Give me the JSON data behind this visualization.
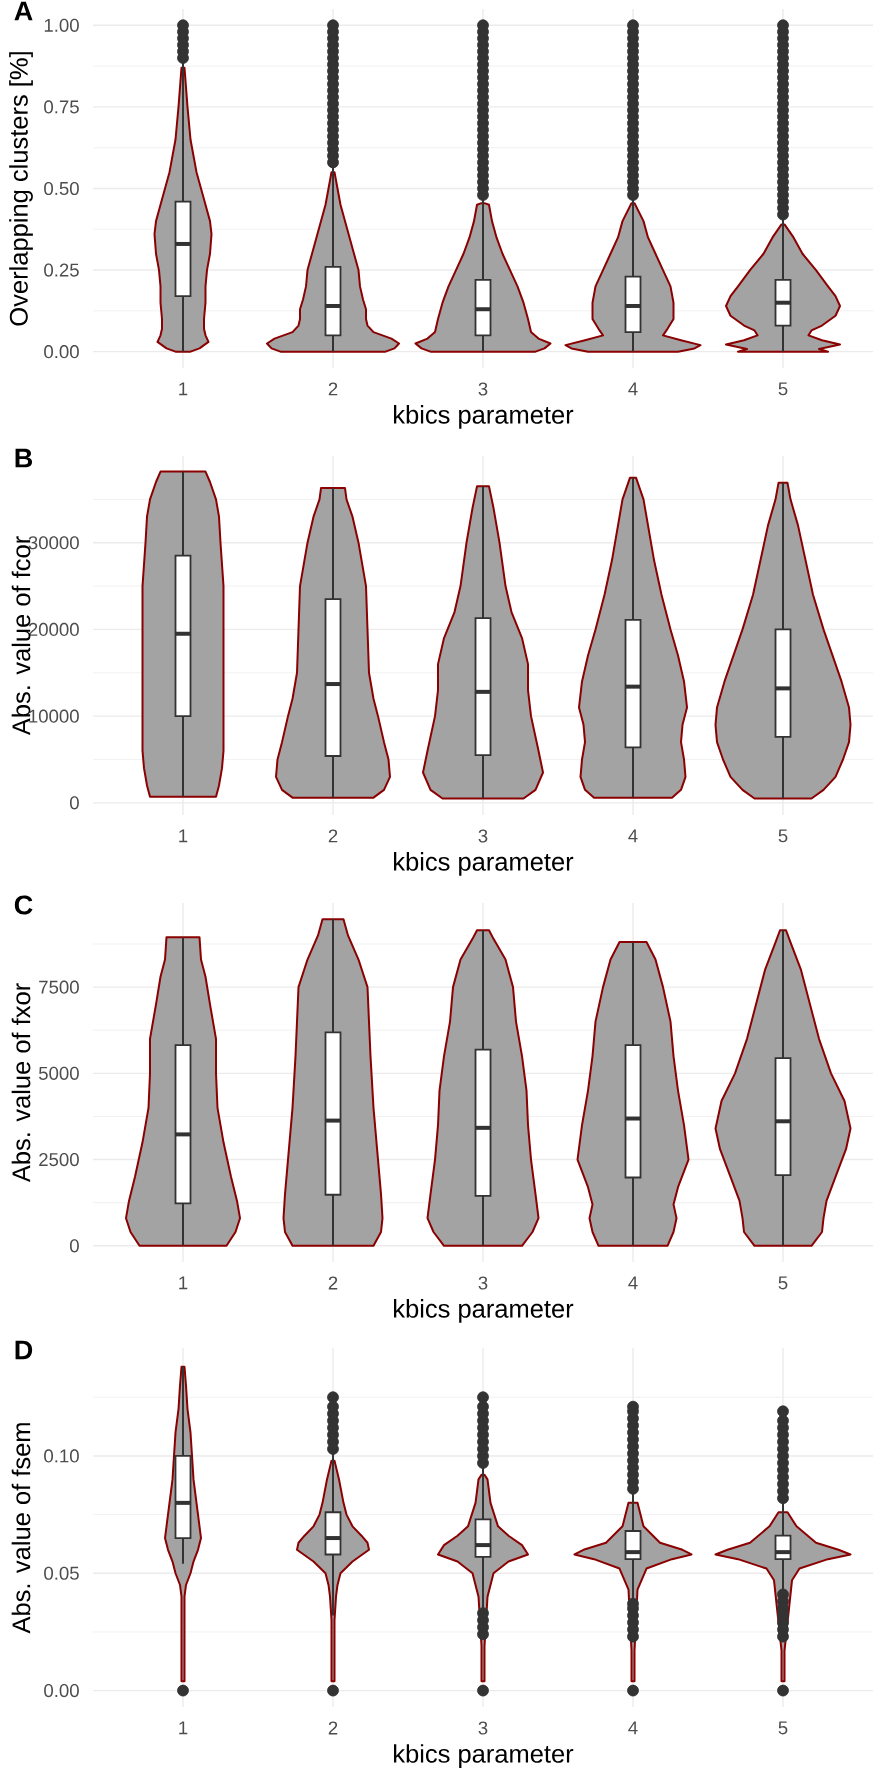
{
  "chart_data": [
    {
      "type": "box",
      "title": "A",
      "xlabel": "kbics parameter",
      "ylabel": "Overlapping clusters [%]",
      "xlim": [
        0.4,
        5.6
      ],
      "xticks": [
        1,
        2,
        3,
        4,
        5
      ],
      "ylim": [
        -0.05,
        1.05
      ],
      "yticks": [
        {
          "value": 0,
          "label": "0.00"
        },
        {
          "value": 0.125,
          "label": null
        },
        {
          "value": 0.25,
          "label": "0.25"
        },
        {
          "value": 0.375,
          "label": null
        },
        {
          "value": 0.5,
          "label": "0.50"
        },
        {
          "value": 0.625,
          "label": null
        },
        {
          "value": 0.75,
          "label": "0.75"
        },
        {
          "value": 0.875,
          "label": null
        },
        {
          "value": 1,
          "label": "1.00"
        }
      ],
      "grid": true,
      "series": [
        {
          "type": "area",
          "color": "#a3a3a3",
          "x": [
            1.05,
            1.11,
            1.17,
            1.15,
            1.14,
            1.14,
            1.15,
            1.15,
            1.16,
            1.18,
            1.19,
            1.18,
            1.15,
            1.12,
            1.09,
            1.05,
            1.03,
            1.01,
            0.99,
            0.97,
            0.95,
            0.91,
            0.88,
            0.85,
            0.82,
            0.81,
            0.82,
            0.84,
            0.85,
            0.85,
            0.86,
            0.86,
            0.85,
            0.83,
            0.89,
            0.95
          ],
          "values": [
            0,
            0.01,
            0.03,
            0.05,
            0.07,
            0.1,
            0.15,
            0.2,
            0.25,
            0.3,
            0.36,
            0.4,
            0.45,
            0.5,
            0.55,
            0.65,
            0.75,
            0.87,
            0.87,
            0.75,
            0.65,
            0.55,
            0.5,
            0.45,
            0.4,
            0.36,
            0.3,
            0.25,
            0.2,
            0.15,
            0.1,
            0.07,
            0.05,
            0.03,
            0.01,
            0
          ]
        },
        {
          "type": "area",
          "color": "#a3a3a3",
          "x": [
            2.35,
            2.41,
            2.44,
            2.39,
            2.27,
            2.23,
            2.22,
            2.22,
            2.2,
            2.18,
            2.17,
            2.14,
            2.11,
            2.08,
            2.05,
            2.03,
            2.01,
            1.99,
            1.97,
            1.95,
            1.92,
            1.89,
            1.86,
            1.83,
            1.82,
            1.8,
            1.78,
            1.78,
            1.77,
            1.73,
            1.61,
            1.56,
            1.59,
            1.65
          ],
          "values": [
            0,
            0.01,
            0.025,
            0.04,
            0.06,
            0.08,
            0.1,
            0.13,
            0.16,
            0.2,
            0.25,
            0.3,
            0.35,
            0.4,
            0.45,
            0.5,
            0.55,
            0.55,
            0.5,
            0.45,
            0.4,
            0.35,
            0.3,
            0.25,
            0.2,
            0.16,
            0.13,
            0.1,
            0.08,
            0.06,
            0.04,
            0.025,
            0.01,
            0
          ]
        },
        {
          "type": "area",
          "color": "#a3a3a3",
          "x": [
            3.35,
            3.41,
            3.45,
            3.37,
            3.32,
            3.3,
            3.27,
            3.23,
            3.18,
            3.13,
            3.09,
            3.06,
            3.04,
            3.01,
            2.99,
            2.96,
            2.94,
            2.91,
            2.87,
            2.82,
            2.77,
            2.73,
            2.7,
            2.68,
            2.63,
            2.55,
            2.59,
            2.65
          ],
          "values": [
            0,
            0.01,
            0.025,
            0.04,
            0.06,
            0.1,
            0.15,
            0.2,
            0.25,
            0.3,
            0.35,
            0.4,
            0.45,
            0.455,
            0.455,
            0.45,
            0.4,
            0.35,
            0.3,
            0.25,
            0.2,
            0.15,
            0.1,
            0.06,
            0.04,
            0.025,
            0.01,
            0
          ]
        },
        {
          "type": "area",
          "color": "#a3a3a3",
          "x": [
            4.3,
            4.41,
            4.45,
            4.32,
            4.2,
            4.23,
            4.27,
            4.27,
            4.25,
            4.2,
            4.15,
            4.1,
            4.07,
            4.01,
            3.99,
            3.93,
            3.9,
            3.85,
            3.8,
            3.75,
            3.73,
            3.73,
            3.77,
            3.8,
            3.68,
            3.55,
            3.59,
            3.7
          ],
          "values": [
            0,
            0.01,
            0.02,
            0.035,
            0.05,
            0.07,
            0.1,
            0.15,
            0.2,
            0.25,
            0.3,
            0.35,
            0.4,
            0.455,
            0.455,
            0.4,
            0.35,
            0.3,
            0.25,
            0.2,
            0.15,
            0.1,
            0.07,
            0.05,
            0.035,
            0.02,
            0.01,
            0
          ]
        },
        {
          "type": "area",
          "color": "#a3a3a3",
          "x": [
            5.3,
            5.24,
            5.38,
            5.26,
            5.17,
            5.19,
            5.26,
            5.35,
            5.38,
            5.35,
            5.3,
            5.22,
            5.13,
            5.07,
            5.01,
            4.99,
            4.93,
            4.87,
            4.78,
            4.7,
            4.65,
            4.62,
            4.65,
            4.74,
            4.81,
            4.83,
            4.74,
            4.62,
            4.76,
            4.7
          ],
          "values": [
            0,
            0.008,
            0.022,
            0.035,
            0.05,
            0.065,
            0.08,
            0.11,
            0.14,
            0.17,
            0.2,
            0.25,
            0.3,
            0.35,
            0.39,
            0.39,
            0.35,
            0.3,
            0.25,
            0.2,
            0.17,
            0.14,
            0.11,
            0.08,
            0.065,
            0.05,
            0.035,
            0.022,
            0.008,
            0
          ]
        },
        {
          "type": "box",
          "marker": "circle",
          "color": "#333333",
          "x": [
            1,
            2,
            3,
            4,
            5
          ],
          "boxes": [
            {
              "low": 0,
              "q1": 0.17,
              "median": 0.33,
              "q3": 0.46,
              "high": 0.89,
              "outliers": [
                0.9,
                0.92,
                0.94,
                0.96,
                0.98,
                1
              ]
            },
            {
              "low": 0,
              "q1": 0.05,
              "median": 0.14,
              "q3": 0.26,
              "high": 0.57,
              "outliers": [
                0.58,
                0.6,
                0.62,
                0.64,
                0.66,
                0.68,
                0.7,
                0.72,
                0.74,
                0.76,
                0.78,
                0.8,
                0.82,
                0.84,
                0.86,
                0.88,
                0.9,
                0.92,
                0.94,
                0.96,
                0.98,
                1
              ]
            },
            {
              "low": 0,
              "q1": 0.05,
              "median": 0.13,
              "q3": 0.22,
              "high": 0.47,
              "outliers": [
                0.48,
                0.5,
                0.52,
                0.54,
                0.56,
                0.58,
                0.6,
                0.62,
                0.64,
                0.66,
                0.68,
                0.7,
                0.72,
                0.74,
                0.76,
                0.78,
                0.8,
                0.82,
                0.84,
                0.86,
                0.88,
                0.9,
                0.92,
                0.94,
                0.96,
                0.98,
                1
              ]
            },
            {
              "low": 0,
              "q1": 0.06,
              "median": 0.14,
              "q3": 0.23,
              "high": 0.47,
              "outliers": [
                0.48,
                0.5,
                0.52,
                0.54,
                0.56,
                0.58,
                0.6,
                0.62,
                0.64,
                0.66,
                0.68,
                0.7,
                0.72,
                0.74,
                0.76,
                0.78,
                0.8,
                0.82,
                0.84,
                0.86,
                0.88,
                0.9,
                0.92,
                0.94,
                0.96,
                0.98,
                1
              ]
            },
            {
              "low": 0,
              "q1": 0.08,
              "median": 0.15,
              "q3": 0.22,
              "high": 0.41,
              "outliers": [
                0.42,
                0.44,
                0.46,
                0.48,
                0.5,
                0.52,
                0.54,
                0.56,
                0.58,
                0.6,
                0.62,
                0.64,
                0.66,
                0.68,
                0.7,
                0.72,
                0.74,
                0.76,
                0.78,
                0.8,
                0.82,
                0.84,
                0.86,
                0.88,
                0.9,
                0.92,
                0.94,
                0.96,
                0.98,
                1
              ]
            }
          ]
        }
      ]
    },
    {
      "type": "box",
      "title": "B",
      "xlabel": "kbics parameter",
      "ylabel": "Abs. value of fcor",
      "xlim": [
        0.4,
        5.6
      ],
      "xticks": [
        1,
        2,
        3,
        4,
        5
      ],
      "ylim": [
        -1400,
        40000
      ],
      "yticks": [
        0,
        {
          "value": 5000,
          "label": null
        },
        10000,
        {
          "value": 15000,
          "label": null
        },
        20000,
        {
          "value": 25000,
          "label": null
        },
        30000,
        {
          "value": 35000,
          "label": null
        }
      ],
      "grid": true,
      "series": [
        {
          "type": "area",
          "color": "#a3a3a3",
          "x": [
            1.22,
            1.24,
            1.26,
            1.27,
            1.27,
            1.27,
            1.27,
            1.27,
            1.25,
            1.24,
            1.22,
            1.18,
            1.15,
            0.85,
            0.82,
            0.78,
            0.76,
            0.75,
            0.73,
            0.73,
            0.73,
            0.73,
            0.73,
            0.74,
            0.76,
            0.78
          ],
          "values": [
            700,
            2000,
            4000,
            6000,
            10000,
            15000,
            20000,
            25000,
            30000,
            33000,
            35000,
            37000,
            38200,
            38200,
            37000,
            35000,
            33000,
            30000,
            25000,
            20000,
            15000,
            10000,
            6000,
            4000,
            2000,
            700
          ]
        },
        {
          "type": "area",
          "color": "#a3a3a3",
          "x": [
            2.27,
            2.34,
            2.38,
            2.37,
            2.34,
            2.3,
            2.27,
            2.24,
            2.23,
            2.22,
            2.19,
            2.17,
            2.13,
            2.09,
            2.08,
            1.92,
            1.91,
            1.87,
            1.83,
            1.81,
            1.78,
            1.77,
            1.76,
            1.73,
            1.7,
            1.66,
            1.63,
            1.62,
            1.66,
            1.73
          ],
          "values": [
            600,
            1500,
            3000,
            5000,
            7000,
            10000,
            12000,
            15000,
            20000,
            25000,
            28000,
            30000,
            33000,
            35000,
            36300,
            36300,
            35000,
            33000,
            30000,
            28000,
            25000,
            20000,
            15000,
            12000,
            10000,
            7000,
            5000,
            3000,
            1500,
            600
          ]
        },
        {
          "type": "area",
          "color": "#a3a3a3",
          "x": [
            3.27,
            3.35,
            3.4,
            3.37,
            3.32,
            3.3,
            3.3,
            3.26,
            3.19,
            3.15,
            3.11,
            3.07,
            3.04,
            2.96,
            2.93,
            2.89,
            2.85,
            2.81,
            2.74,
            2.7,
            2.7,
            2.68,
            2.63,
            2.6,
            2.65,
            2.73
          ],
          "values": [
            500,
            1500,
            3500,
            6000,
            10000,
            13000,
            16000,
            19000,
            22000,
            25000,
            30000,
            34000,
            36500,
            36500,
            34000,
            30000,
            25000,
            22000,
            19000,
            16000,
            13000,
            10000,
            6000,
            3500,
            1500,
            500
          ]
        },
        {
          "type": "area",
          "color": "#a3a3a3",
          "x": [
            4.26,
            4.32,
            4.35,
            4.34,
            4.32,
            4.33,
            4.36,
            4.34,
            4.3,
            4.25,
            4.19,
            4.14,
            4.1,
            4.07,
            4.02,
            3.98,
            3.93,
            3.9,
            3.86,
            3.81,
            3.75,
            3.7,
            3.66,
            3.64,
            3.67,
            3.68,
            3.66,
            3.65,
            3.68,
            3.74
          ],
          "values": [
            600,
            1500,
            3000,
            5000,
            7000,
            9000,
            11000,
            14000,
            17000,
            20000,
            24000,
            28000,
            32000,
            35000,
            37500,
            37500,
            35000,
            32000,
            28000,
            24000,
            20000,
            17000,
            14000,
            11000,
            9000,
            7000,
            5000,
            3000,
            1500,
            600
          ]
        },
        {
          "type": "area",
          "color": "#a3a3a3",
          "x": [
            5.19,
            5.27,
            5.35,
            5.4,
            5.44,
            5.45,
            5.44,
            5.39,
            5.33,
            5.27,
            5.2,
            5.15,
            5.1,
            5.05,
            5.03,
            4.97,
            4.95,
            4.9,
            4.85,
            4.8,
            4.73,
            4.67,
            4.61,
            4.56,
            4.55,
            4.56,
            4.6,
            4.65,
            4.73,
            4.81
          ],
          "values": [
            500,
            1500,
            3000,
            5000,
            7000,
            9000,
            11000,
            14000,
            17000,
            20000,
            24000,
            28000,
            32000,
            35000,
            36900,
            36900,
            35000,
            32000,
            28000,
            24000,
            20000,
            17000,
            14000,
            11000,
            9000,
            7000,
            5000,
            3000,
            1500,
            500
          ]
        },
        {
          "type": "box",
          "marker": "circle",
          "color": "#333333",
          "x": [
            1,
            2,
            3,
            4,
            5
          ],
          "boxes": [
            {
              "low": 700,
              "q1": 10000,
              "median": 19500,
              "q3": 28500,
              "high": 38200
            },
            {
              "low": 600,
              "q1": 5400,
              "median": 13700,
              "q3": 23500,
              "high": 36300
            },
            {
              "low": 500,
              "q1": 5500,
              "median": 12800,
              "q3": 21300,
              "high": 36500
            },
            {
              "low": 600,
              "q1": 6400,
              "median": 13400,
              "q3": 21100,
              "high": 37500
            },
            {
              "low": 500,
              "q1": 7600,
              "median": 13200,
              "q3": 20000,
              "high": 36900
            }
          ]
        }
      ]
    },
    {
      "type": "box",
      "title": "C",
      "xlabel": "kbics parameter",
      "ylabel": "Abs. value of fxor",
      "xlim": [
        0.4,
        5.6
      ],
      "xticks": [
        1,
        2,
        3,
        4,
        5
      ],
      "ylim": [
        -470,
        9940
      ],
      "yticks": [
        0,
        {
          "value": 1250,
          "label": null
        },
        2500,
        {
          "value": 3750,
          "label": null
        },
        5000,
        {
          "value": 6250,
          "label": null
        },
        7500,
        {
          "value": 8750,
          "label": null
        }
      ],
      "grid": true,
      "series": [
        {
          "type": "area",
          "color": "#a3a3a3",
          "x": [
            1.29,
            1.35,
            1.38,
            1.36,
            1.32,
            1.27,
            1.23,
            1.22,
            1.22,
            1.18,
            1.15,
            1.12,
            1.11,
            0.89,
            0.88,
            0.85,
            0.82,
            0.78,
            0.78,
            0.77,
            0.73,
            0.68,
            0.64,
            0.62,
            0.65,
            0.71
          ],
          "values": [
            0,
            400,
            800,
            1300,
            2000,
            3000,
            4000,
            5000,
            6000,
            7000,
            7800,
            8300,
            8950,
            8950,
            8300,
            7800,
            7000,
            6000,
            5000,
            4000,
            3000,
            2000,
            1300,
            800,
            400,
            0
          ]
        },
        {
          "type": "area",
          "color": "#a3a3a3",
          "x": [
            2.27,
            2.32,
            2.33,
            2.32,
            2.3,
            2.27,
            2.25,
            2.24,
            2.23,
            2.17,
            2.1,
            2.07,
            1.93,
            1.9,
            1.83,
            1.77,
            1.76,
            1.75,
            1.73,
            1.7,
            1.68,
            1.67,
            1.68,
            1.73
          ],
          "values": [
            0,
            400,
            800,
            1500,
            2500,
            4000,
            5500,
            6500,
            7500,
            8300,
            9000,
            9470,
            9470,
            9000,
            8300,
            7500,
            6500,
            5500,
            4000,
            2500,
            1500,
            800,
            400,
            0
          ]
        },
        {
          "type": "area",
          "color": "#a3a3a3",
          "x": [
            3.26,
            3.33,
            3.37,
            3.35,
            3.32,
            3.3,
            3.29,
            3.26,
            3.22,
            3.2,
            3.15,
            3.07,
            3.04,
            2.96,
            2.93,
            2.85,
            2.8,
            2.78,
            2.74,
            2.71,
            2.7,
            2.68,
            2.65,
            2.63,
            2.67,
            2.74
          ],
          "values": [
            0,
            400,
            800,
            1500,
            2500,
            3500,
            4500,
            5500,
            6500,
            7500,
            8300,
            8900,
            9150,
            9150,
            8900,
            8300,
            7500,
            6500,
            5500,
            4500,
            3500,
            2500,
            1500,
            800,
            400,
            0
          ]
        },
        {
          "type": "area",
          "color": "#a3a3a3",
          "x": [
            4.23,
            4.27,
            4.29,
            4.27,
            4.3,
            4.37,
            4.34,
            4.3,
            4.27,
            4.25,
            4.2,
            4.15,
            4.09,
            3.91,
            3.85,
            3.8,
            3.75,
            3.73,
            3.7,
            3.66,
            3.63,
            3.7,
            3.73,
            3.71,
            3.73,
            3.77
          ],
          "values": [
            0,
            400,
            800,
            1200,
            1700,
            2500,
            3500,
            4500,
            5500,
            6500,
            7500,
            8300,
            8810,
            8810,
            8300,
            7500,
            6500,
            5500,
            4500,
            3500,
            2500,
            1700,
            1200,
            800,
            400,
            0
          ]
        },
        {
          "type": "area",
          "color": "#a3a3a3",
          "x": [
            5.19,
            5.26,
            5.27,
            5.29,
            5.35,
            5.42,
            5.45,
            5.41,
            5.32,
            5.24,
            5.18,
            5.12,
            5.05,
            5.02,
            4.98,
            4.95,
            4.88,
            4.82,
            4.76,
            4.68,
            4.59,
            4.55,
            4.58,
            4.65,
            4.71,
            4.73,
            4.74,
            4.81
          ],
          "values": [
            0,
            400,
            800,
            1300,
            2000,
            2800,
            3400,
            4200,
            5000,
            6000,
            7000,
            8000,
            8800,
            9150,
            9150,
            8800,
            8000,
            7000,
            6000,
            5000,
            4200,
            3400,
            2800,
            2000,
            1300,
            800,
            400,
            0
          ]
        },
        {
          "type": "box",
          "marker": "circle",
          "color": "#333333",
          "x": [
            1,
            2,
            3,
            4,
            5
          ],
          "boxes": [
            {
              "low": 0,
              "q1": 1230,
              "median": 3230,
              "q3": 5820,
              "high": 8950
            },
            {
              "low": 0,
              "q1": 1480,
              "median": 3630,
              "q3": 6190,
              "high": 9470
            },
            {
              "low": 0,
              "q1": 1450,
              "median": 3420,
              "q3": 5690,
              "high": 9150
            },
            {
              "low": 0,
              "q1": 1980,
              "median": 3690,
              "q3": 5820,
              "high": 8810
            },
            {
              "low": 0,
              "q1": 2050,
              "median": 3610,
              "q3": 5440,
              "high": 9150
            }
          ]
        }
      ]
    },
    {
      "type": "box",
      "title": "D",
      "xlabel": "kbics parameter",
      "ylabel": "Abs. value of fsem",
      "xlim": [
        0.4,
        5.6
      ],
      "xticks": [
        1,
        2,
        3,
        4,
        5
      ],
      "ylim": [
        -0.007,
        0.146
      ],
      "yticks": [
        {
          "value": 0,
          "label": "0.00"
        },
        {
          "value": 0.025,
          "label": null
        },
        {
          "value": 0.05,
          "label": "0.05"
        },
        {
          "value": 0.075,
          "label": null
        },
        {
          "value": 0.1,
          "label": "0.10"
        },
        {
          "value": 0.125,
          "label": null
        }
      ],
      "grid": true,
      "series": [
        {
          "type": "area",
          "color": "#a3a3a3",
          "x": [
            1.01,
            1.01,
            1.02,
            1.05,
            1.07,
            1.1,
            1.12,
            1.11,
            1.09,
            1.07,
            1.06,
            1.05,
            1.03,
            1.02,
            1.01,
            0.99,
            0.98,
            0.97,
            0.95,
            0.94,
            0.93,
            0.91,
            0.89,
            0.88,
            0.9,
            0.93,
            0.95,
            0.98,
            0.99,
            0.99
          ],
          "values": [
            0.004,
            0.04,
            0.045,
            0.05,
            0.055,
            0.06,
            0.065,
            0.07,
            0.08,
            0.09,
            0.1,
            0.11,
            0.12,
            0.13,
            0.138,
            0.138,
            0.13,
            0.12,
            0.11,
            0.1,
            0.09,
            0.08,
            0.07,
            0.065,
            0.06,
            0.055,
            0.05,
            0.045,
            0.04,
            0.004
          ]
        },
        {
          "type": "area",
          "color": "#a3a3a3",
          "x": [
            2.01,
            2.01,
            2.02,
            2.03,
            2.05,
            2.13,
            2.24,
            2.23,
            2.19,
            2.13,
            2.09,
            2.07,
            2.04,
            2.01,
            1.99,
            1.96,
            1.93,
            1.91,
            1.87,
            1.81,
            1.77,
            1.76,
            1.87,
            1.95,
            1.97,
            1.98,
            1.99,
            1.99
          ],
          "values": [
            0.004,
            0.03,
            0.04,
            0.045,
            0.05,
            0.055,
            0.06,
            0.063,
            0.066,
            0.07,
            0.075,
            0.08,
            0.09,
            0.098,
            0.098,
            0.09,
            0.08,
            0.075,
            0.07,
            0.066,
            0.063,
            0.06,
            0.055,
            0.05,
            0.045,
            0.04,
            0.03,
            0.004
          ]
        },
        {
          "type": "area",
          "color": "#a3a3a3",
          "x": [
            3.01,
            3.01,
            3.03,
            3.07,
            3.17,
            3.3,
            3.26,
            3.17,
            3.1,
            3.05,
            3.03,
            3.01,
            2.99,
            2.97,
            2.95,
            2.9,
            2.83,
            2.74,
            2.7,
            2.83,
            2.93,
            2.97,
            2.99,
            2.99
          ],
          "values": [
            0.004,
            0.019,
            0.04,
            0.05,
            0.055,
            0.058,
            0.062,
            0.066,
            0.07,
            0.08,
            0.09,
            0.092,
            0.092,
            0.09,
            0.08,
            0.07,
            0.066,
            0.062,
            0.058,
            0.055,
            0.05,
            0.04,
            0.019,
            0.004
          ]
        },
        {
          "type": "area",
          "color": "#a3a3a3",
          "x": [
            4.01,
            4.01,
            4.03,
            4.09,
            4.26,
            4.39,
            4.33,
            4.18,
            4.07,
            4.03,
            3.97,
            3.93,
            3.82,
            3.67,
            3.61,
            3.74,
            3.91,
            3.97,
            3.99,
            3.99
          ],
          "values": [
            0.004,
            0.017,
            0.043,
            0.052,
            0.056,
            0.058,
            0.06,
            0.063,
            0.07,
            0.08,
            0.08,
            0.07,
            0.063,
            0.06,
            0.058,
            0.056,
            0.052,
            0.043,
            0.017,
            0.004
          ]
        },
        {
          "type": "area",
          "color": "#a3a3a3",
          "x": [
            5.01,
            5.01,
            5.06,
            5.11,
            5.3,
            5.45,
            5.37,
            5.22,
            5.09,
            5.03,
            4.97,
            4.91,
            4.78,
            4.63,
            4.55,
            4.7,
            4.89,
            4.94,
            4.99,
            4.99
          ],
          "values": [
            0.004,
            0.017,
            0.047,
            0.052,
            0.056,
            0.058,
            0.06,
            0.063,
            0.07,
            0.076,
            0.076,
            0.07,
            0.063,
            0.06,
            0.058,
            0.056,
            0.052,
            0.047,
            0.017,
            0.004
          ]
        },
        {
          "type": "box",
          "marker": "circle",
          "color": "#333333",
          "x": [
            1,
            2,
            3,
            4,
            5
          ],
          "boxes": [
            {
              "low": 0.054,
              "q1": 0.065,
              "median": 0.08,
              "q3": 0.1,
              "high": 0.138,
              "outliers": [
                0
              ]
            },
            {
              "low": 0.032,
              "q1": 0.058,
              "median": 0.065,
              "q3": 0.076,
              "high": 0.101,
              "outliers": [
                0,
                0.103,
                0.106,
                0.109,
                0.112,
                0.115,
                0.118,
                0.121,
                0.125
              ]
            },
            {
              "low": 0.035,
              "q1": 0.057,
              "median": 0.062,
              "q3": 0.073,
              "high": 0.095,
              "outliers": [
                0,
                0.024,
                0.027,
                0.03,
                0.033,
                0.097,
                0.1,
                0.103,
                0.106,
                0.109,
                0.112,
                0.115,
                0.118,
                0.121,
                0.125
              ]
            },
            {
              "low": 0.039,
              "q1": 0.056,
              "median": 0.059,
              "q3": 0.068,
              "high": 0.084,
              "outliers": [
                0,
                0.023,
                0.026,
                0.029,
                0.032,
                0.035,
                0.037,
                0.086,
                0.089,
                0.092,
                0.095,
                0.098,
                0.101,
                0.104,
                0.107,
                0.11,
                0.113,
                0.116,
                0.119,
                0.121
              ]
            },
            {
              "low": 0.043,
              "q1": 0.056,
              "median": 0.059,
              "q3": 0.066,
              "high": 0.08,
              "outliers": [
                0,
                0.023,
                0.026,
                0.029,
                0.032,
                0.035,
                0.038,
                0.041,
                0.082,
                0.085,
                0.088,
                0.091,
                0.094,
                0.097,
                0.1,
                0.103,
                0.106,
                0.109,
                0.112,
                0.115,
                0.119
              ]
            }
          ]
        }
      ]
    }
  ]
}
